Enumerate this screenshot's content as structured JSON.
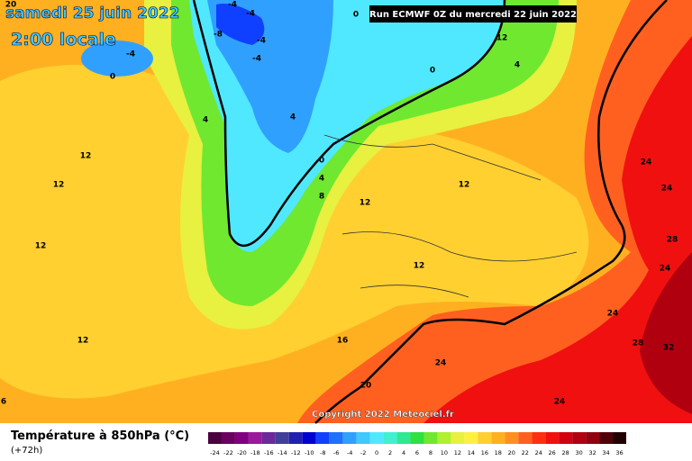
{
  "header": {
    "date": "samedi 25 juin 2022",
    "time": "2:00 locale",
    "run": "Run ECMWF 0Z du mercredi 22 juin 2022",
    "copyright": "Copyright 2022 Meteociel.fr"
  },
  "map_labels": [
    20,
    -4,
    -4,
    -8,
    -4,
    -4,
    0,
    -4,
    4,
    4,
    0,
    4,
    8,
    12,
    12,
    12,
    12,
    12,
    12,
    12,
    0,
    0,
    12,
    4,
    24,
    24,
    28,
    24,
    24,
    28,
    32,
    24,
    16,
    20,
    24,
    6
  ],
  "legend": {
    "title": "Température à 850hPa (°C)",
    "subtitle": "(+72h)",
    "levels": [
      -24,
      -22,
      -20,
      -18,
      -16,
      -14,
      -12,
      -10,
      -8,
      -6,
      -4,
      -2,
      0,
      2,
      4,
      6,
      8,
      10,
      12,
      14,
      16,
      18,
      20,
      22,
      24,
      26,
      28,
      30,
      32,
      34,
      36
    ],
    "colors": [
      "#4b0040",
      "#6a0060",
      "#800080",
      "#9a1a9a",
      "#6a2a9a",
      "#40409a",
      "#2020b0",
      "#0000d0",
      "#1040ff",
      "#2070ff",
      "#30a0ff",
      "#40c8ff",
      "#50e8ff",
      "#40f0d0",
      "#30e890",
      "#30e040",
      "#70e830",
      "#b0f030",
      "#e8f040",
      "#fff040",
      "#ffd030",
      "#ffb020",
      "#ff9020",
      "#ff6020",
      "#ff3010",
      "#f01010",
      "#d00010",
      "#b00010",
      "#900010",
      "#500008",
      "#200000"
    ]
  }
}
